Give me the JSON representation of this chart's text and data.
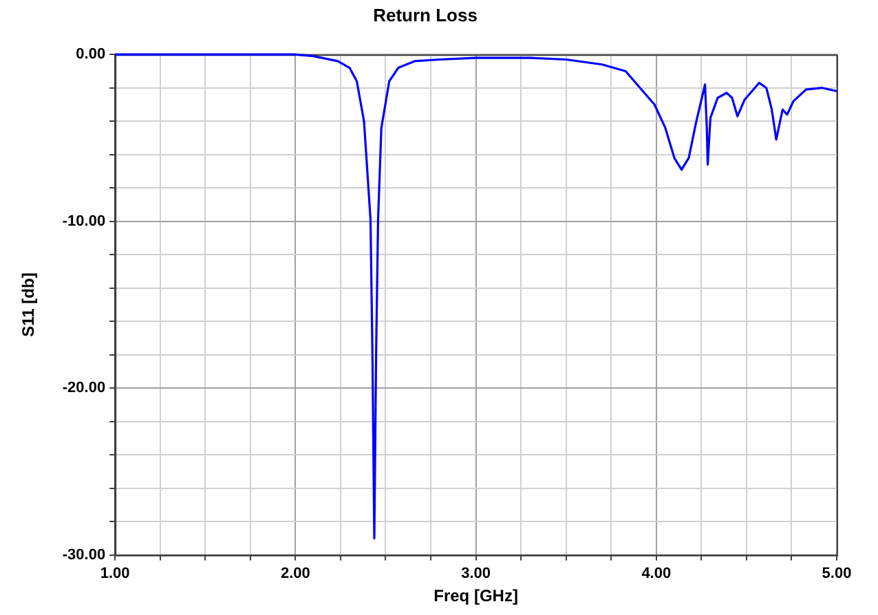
{
  "chart_data": {
    "type": "line",
    "title": "Return Loss",
    "xlabel": "Freq [GHz]",
    "ylabel": "S11 [db]",
    "x": [
      1.0,
      1.5,
      1.8,
      2.0,
      2.1,
      2.235,
      2.3,
      2.34,
      2.38,
      2.416,
      2.427,
      2.437,
      2.447,
      2.458,
      2.476,
      2.52,
      2.57,
      2.66,
      2.8,
      3.0,
      3.3,
      3.5,
      3.7,
      3.83,
      3.99,
      4.05,
      4.1,
      4.14,
      4.18,
      4.22,
      4.27,
      4.28,
      4.285,
      4.3,
      4.34,
      4.39,
      4.42,
      4.45,
      4.49,
      4.57,
      4.61,
      4.64,
      4.665,
      4.7,
      4.725,
      4.76,
      4.83,
      4.92,
      5.0
    ],
    "series": [
      {
        "color": "#0000ff",
        "values": [
          0,
          0,
          0,
          0,
          -0.1,
          -0.4,
          -0.8,
          -1.6,
          -4.0,
          -9.9,
          -18.2,
          -29.0,
          -18.0,
          -9.9,
          -4.4,
          -1.6,
          -0.8,
          -0.4,
          -0.3,
          -0.2,
          -0.2,
          -0.3,
          -0.6,
          -1.0,
          -3.0,
          -4.4,
          -6.2,
          -6.9,
          -6.2,
          -4.1,
          -1.8,
          -4.4,
          -6.6,
          -3.8,
          -2.6,
          -2.3,
          -2.6,
          -3.7,
          -2.7,
          -1.7,
          -2.0,
          -3.3,
          -5.1,
          -3.3,
          -3.6,
          -2.8,
          -2.1,
          -2.0,
          -2.2
        ]
      }
    ],
    "xlim": [
      1.0,
      5.0
    ],
    "xticks": [
      {
        "value": 1,
        "label": "1.00"
      },
      {
        "value": 1.25,
        "label": null
      },
      {
        "value": 1.5,
        "label": null
      },
      {
        "value": 1.75,
        "label": null
      },
      {
        "value": 2,
        "label": "2.00"
      },
      {
        "value": 2.25,
        "label": null
      },
      {
        "value": 2.5,
        "label": null
      },
      {
        "value": 2.75,
        "label": null
      },
      {
        "value": 3,
        "label": "3.00"
      },
      {
        "value": 3.25,
        "label": null
      },
      {
        "value": 3.5,
        "label": null
      },
      {
        "value": 3.75,
        "label": null
      },
      {
        "value": 4,
        "label": "4.00"
      },
      {
        "value": 4.25,
        "label": null
      },
      {
        "value": 4.5,
        "label": null
      },
      {
        "value": 4.75,
        "label": null
      },
      {
        "value": 5,
        "label": "5.00"
      }
    ],
    "ylim": [
      -30,
      0
    ],
    "yticks": [
      {
        "value": -30,
        "label": "-30.00"
      },
      {
        "value": -28,
        "label": null
      },
      {
        "value": -26,
        "label": null
      },
      {
        "value": -24,
        "label": null
      },
      {
        "value": -22,
        "label": null
      },
      {
        "value": -20,
        "label": "-20.00"
      },
      {
        "value": -18,
        "label": null
      },
      {
        "value": -16,
        "label": null
      },
      {
        "value": -14,
        "label": null
      },
      {
        "value": -12,
        "label": null
      },
      {
        "value": -10,
        "label": "-10.00"
      },
      {
        "value": -8,
        "label": null
      },
      {
        "value": -6,
        "label": null
      },
      {
        "value": -4,
        "label": null
      },
      {
        "value": -2,
        "label": null
      },
      {
        "value": 0,
        "label": "0.00"
      }
    ],
    "grid": true,
    "legend": false,
    "marker": "none",
    "line_style": "solid"
  }
}
